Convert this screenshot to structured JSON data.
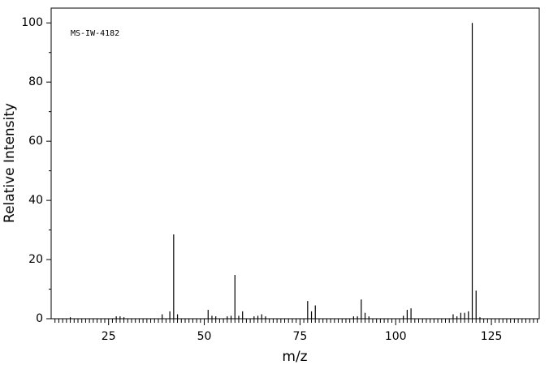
{
  "chart_data": {
    "type": "stem",
    "annotation": "MS-IW-4182",
    "xlabel": "m/z",
    "ylabel": "Relative Intensity",
    "x": [
      15,
      27,
      28,
      29,
      39,
      41,
      42,
      43,
      51,
      52,
      53,
      56,
      57,
      58,
      59,
      60,
      63,
      64,
      65,
      66,
      77,
      78,
      79,
      89,
      90,
      91,
      92,
      93,
      102,
      103,
      104,
      115,
      116,
      117,
      118,
      119,
      120,
      121,
      122
    ],
    "values": [
      0.5,
      0.8,
      0.8,
      0.5,
      1.5,
      2.5,
      28.5,
      1.5,
      3,
      1,
      0.8,
      0.8,
      1,
      14.8,
      1,
      2.5,
      0.8,
      1,
      1.5,
      0.8,
      6,
      2.5,
      4.5,
      0.8,
      0.8,
      6.5,
      2,
      0.8,
      1,
      3,
      3.5,
      1.5,
      0.8,
      2,
      2,
      2.5,
      100,
      9.5,
      0.5
    ],
    "color": "#000000",
    "xlim": [
      10,
      137.5
    ],
    "ylim": [
      0,
      105
    ],
    "xticks": [
      25,
      50,
      75,
      100,
      125
    ],
    "yticks": [
      0,
      20,
      40,
      60,
      80,
      100
    ],
    "yminorticks": [
      10,
      30,
      50,
      70,
      90
    ],
    "xminorticks": [
      11,
      12,
      13,
      14,
      15,
      16,
      17,
      18,
      19,
      20,
      21,
      22,
      23,
      24,
      26,
      27,
      28,
      29,
      30,
      31,
      32,
      33,
      34,
      35,
      36,
      37,
      38,
      39,
      40,
      41,
      42,
      43,
      44,
      45,
      46,
      47,
      48,
      49,
      51,
      52,
      53,
      54,
      55,
      56,
      57,
      58,
      59,
      60,
      61,
      62,
      63,
      64,
      65,
      66,
      67,
      68,
      69,
      70,
      71,
      72,
      73,
      74,
      76,
      77,
      78,
      79,
      80,
      81,
      82,
      83,
      84,
      85,
      86,
      87,
      88,
      89,
      90,
      91,
      92,
      93,
      94,
      95,
      96,
      97,
      98,
      99,
      101,
      102,
      103,
      104,
      105,
      106,
      107,
      108,
      109,
      110,
      111,
      112,
      113,
      114,
      115,
      116,
      117,
      118,
      119,
      120,
      121,
      122,
      123,
      124,
      126,
      127,
      128,
      129,
      130,
      131,
      132,
      133,
      134,
      135,
      136,
      137
    ]
  }
}
